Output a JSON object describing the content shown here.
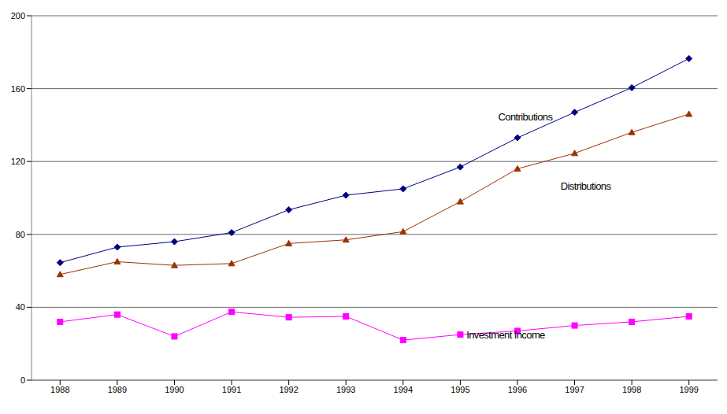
{
  "chart_data": {
    "type": "line",
    "categories": [
      "1988",
      "1989",
      "1990",
      "1991",
      "1992",
      "1993",
      "1994",
      "1995",
      "1996",
      "1997",
      "1998",
      "1999"
    ],
    "series": [
      {
        "name": "Contributions",
        "color": "#000080",
        "marker": "diamond",
        "line_style": "solid",
        "values": [
          64.5,
          73,
          76,
          81,
          93.5,
          101.5,
          105,
          117,
          133,
          147,
          160.5,
          176.5
        ]
      },
      {
        "name": "Distributions",
        "color": "#993300",
        "marker": "triangle",
        "line_style": "solid",
        "values": [
          58,
          65,
          63,
          64,
          75,
          77,
          81.5,
          98,
          116,
          124.5,
          136,
          146
        ]
      },
      {
        "name": "Investment Income",
        "color": "#ff00ff",
        "marker": "square",
        "line_style": "solid",
        "values": [
          32,
          36,
          24,
          37.5,
          34.5,
          35,
          22,
          25,
          27,
          30,
          32,
          35
        ]
      }
    ],
    "ylim": [
      0,
      200
    ],
    "yticks": [
      0,
      40,
      80,
      120,
      160,
      200
    ],
    "grid": true
  }
}
